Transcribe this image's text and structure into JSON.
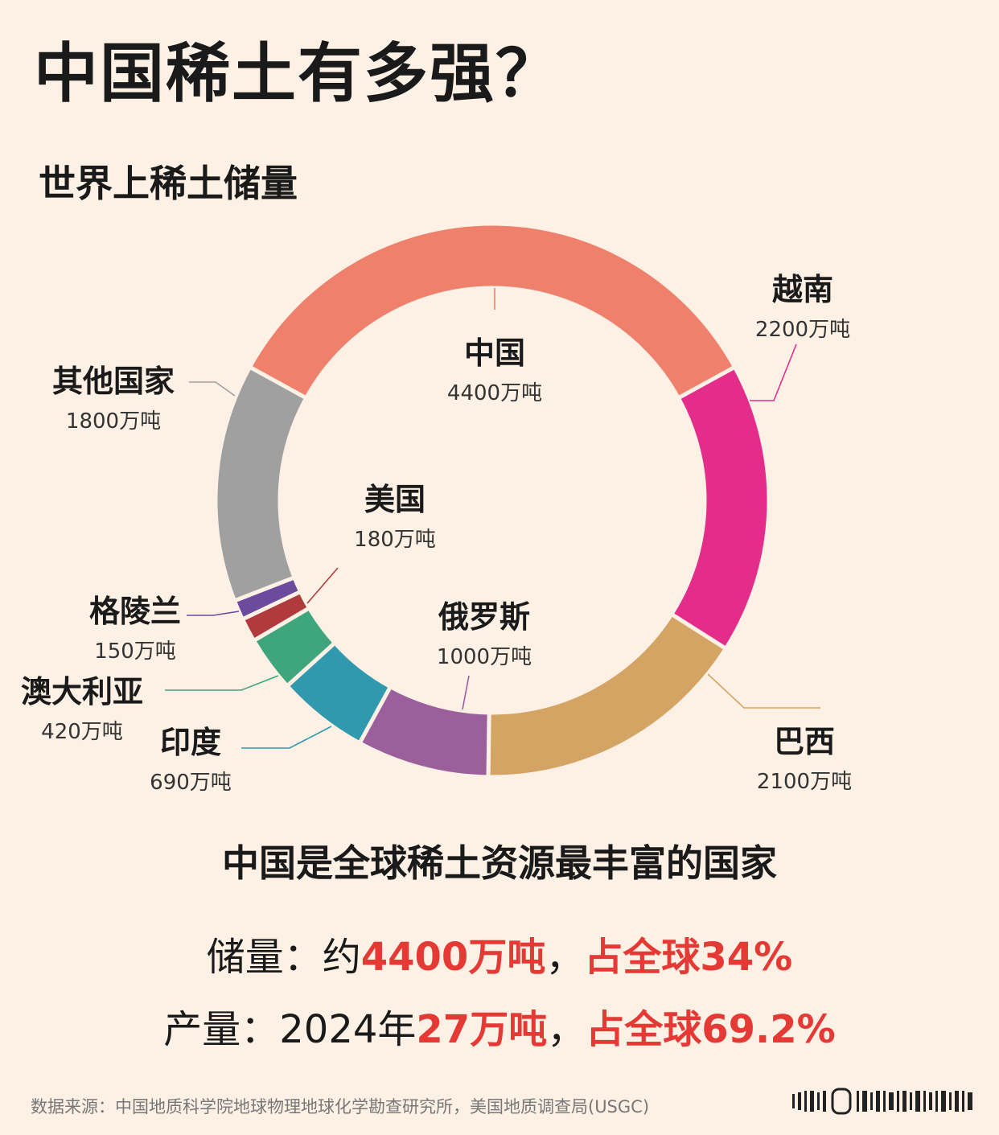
{
  "title": "中国稀土有多强？",
  "subtitle": "世界上稀土储量",
  "chart_data": {
    "type": "pie",
    "variant": "donut",
    "unit": "万吨",
    "slices": [
      {
        "name": "中国",
        "value": 4400,
        "value_label": "4400万吨",
        "color": "#ef806c"
      },
      {
        "name": "越南",
        "value": 2200,
        "value_label": "2200万吨",
        "color": "#e42c8a"
      },
      {
        "name": "巴西",
        "value": 2100,
        "value_label": "2100万吨",
        "color": "#d4a464"
      },
      {
        "name": "俄罗斯",
        "value": 1000,
        "value_label": "1000万吨",
        "color": "#9b5f9b"
      },
      {
        "name": "印度",
        "value": 690,
        "value_label": "690万吨",
        "color": "#3199ad"
      },
      {
        "name": "澳大利亚",
        "value": 420,
        "value_label": "420万吨",
        "color": "#3fa57c"
      },
      {
        "name": "美国",
        "value": 180,
        "value_label": "180万吨",
        "color": "#b03a3c"
      },
      {
        "name": "格陵兰",
        "value": 150,
        "value_label": "150万吨",
        "color": "#6d4b9c"
      },
      {
        "name": "其他国家",
        "value": 1800,
        "value_label": "1800万吨",
        "color": "#a0a0a0"
      }
    ]
  },
  "headline": "中国是全球稀土资源最丰富的国家",
  "stats": {
    "reserve": {
      "prefix": "储量：约",
      "amount": "4400万吨",
      "sep": "，",
      "share": "占全球34%"
    },
    "production": {
      "prefix": "产量：2024年",
      "amount": "27万吨",
      "sep": "，",
      "share": "占全球69.2%"
    }
  },
  "source": "数据来源：中国地质科学院地球物理地球化学勘查研究所，美国地质调查局(USGC)"
}
